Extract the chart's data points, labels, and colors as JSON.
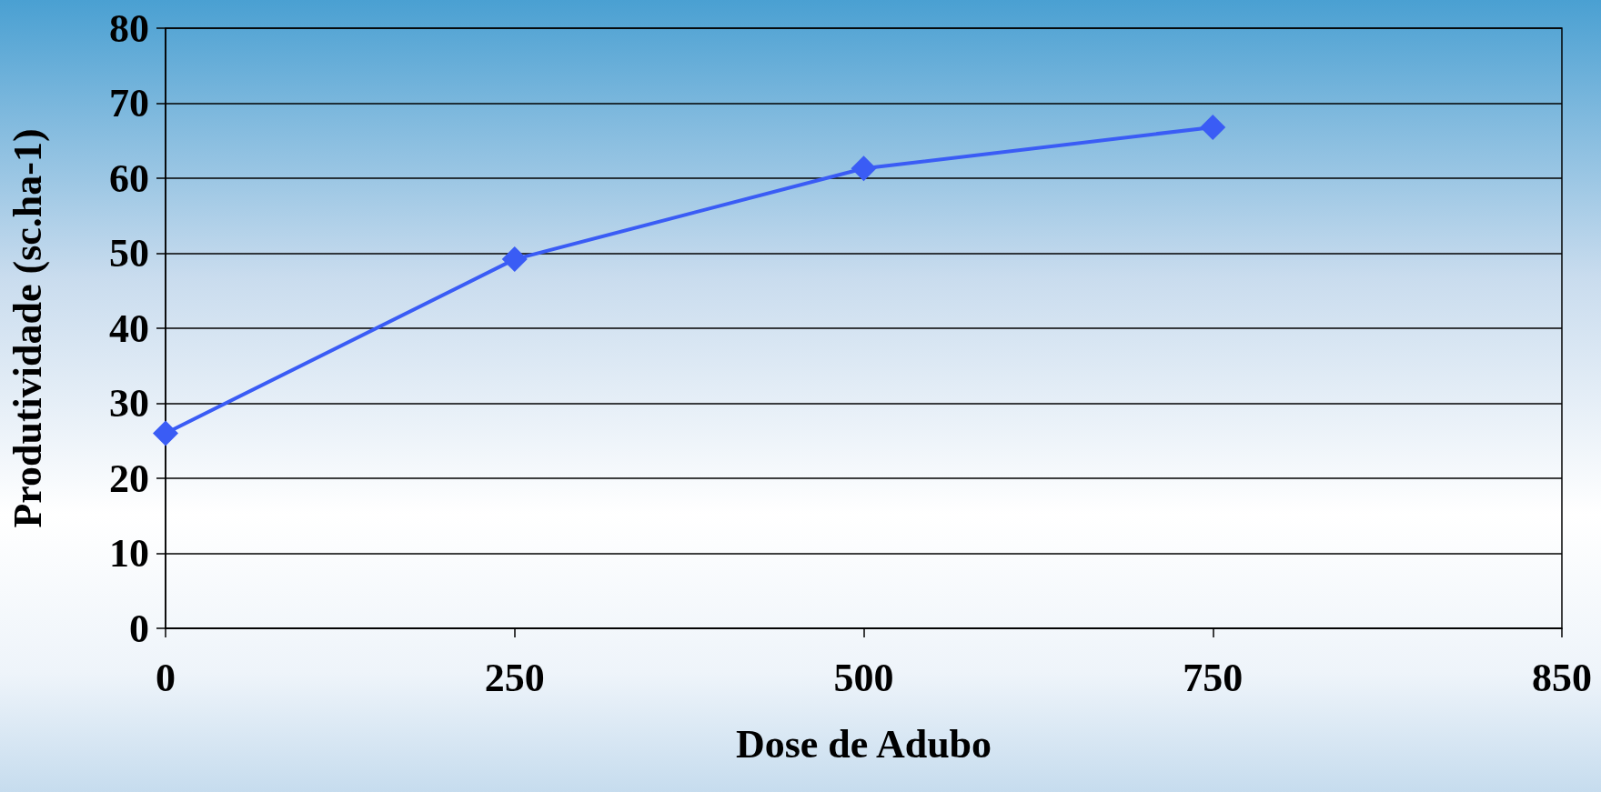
{
  "chart_data": {
    "type": "line",
    "xlabel": "Dose de Adubo",
    "ylabel": "Produtividade (sc.ha-1)",
    "categories": [
      "0",
      "250",
      "500",
      "750",
      "850"
    ],
    "series": [
      {
        "color": "#3a5cf5",
        "values": [
          26,
          49.2,
          61.3,
          66.8,
          null
        ]
      }
    ],
    "ylim": [
      0,
      80
    ],
    "yticks": [
      0,
      10,
      20,
      30,
      40,
      50,
      60,
      70,
      80
    ],
    "grid": "y",
    "marker": "diamond",
    "line_style": "solid"
  }
}
